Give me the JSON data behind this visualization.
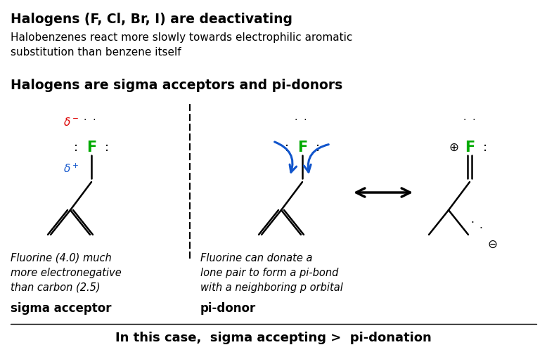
{
  "bg_color": "#ffffff",
  "title1": "Halogens (F, Cl, Br, I) are deactivating",
  "subtitle": "Halobenzenes react more slowly towards electrophilic aromatic\nsubstitution than benzene itself",
  "title2": "Halogens are sigma acceptors and pi-donors",
  "caption1_italic": "Fluorine (4.0) much\nmore electronegative\nthan carbon (2.5)",
  "label1": "sigma acceptor",
  "caption2_italic": "Fluorine can donate a\nlone pair to form a pi-bond\nwith a neighboring p orbital",
  "label2": "pi-donor",
  "bottom_text": "In this case,  sigma accepting >  pi-donation",
  "green_color": "#00aa00",
  "red_color": "#dd0000",
  "blue_color": "#1155cc",
  "black_color": "#000000",
  "figsize": [
    7.78,
    5.02
  ],
  "dpi": 100
}
